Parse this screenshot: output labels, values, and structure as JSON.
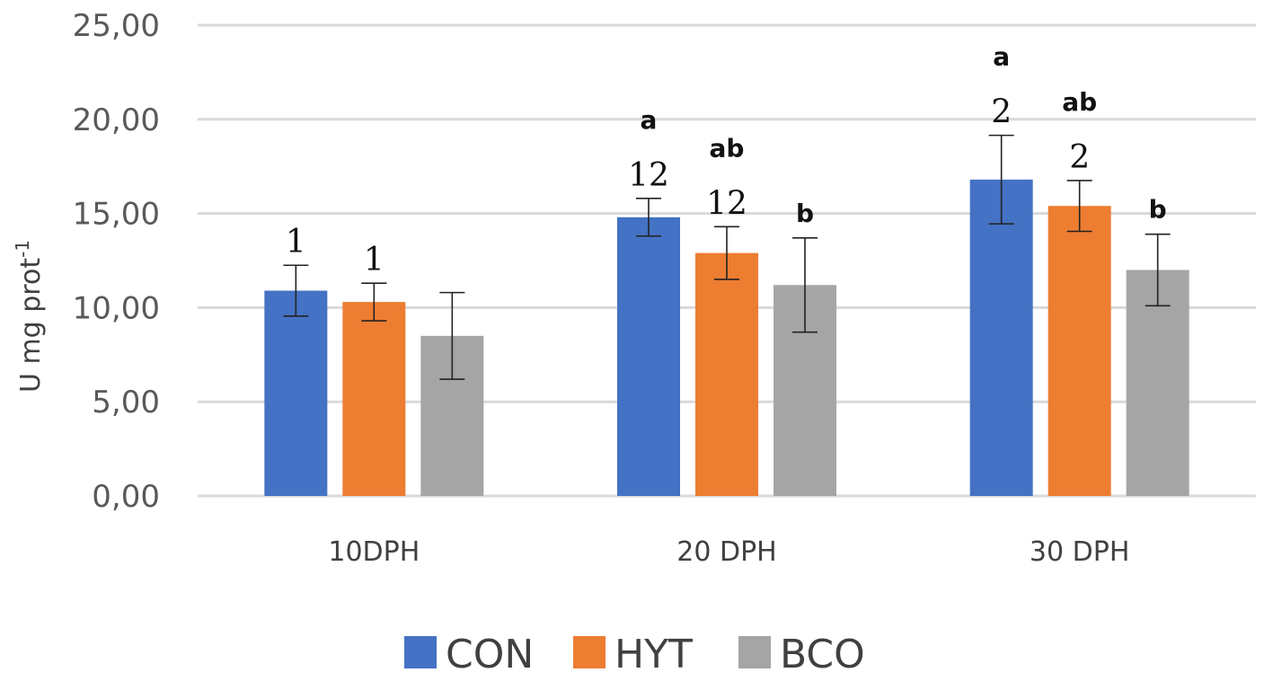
{
  "chart_data": {
    "type": "bar",
    "categories": [
      "10DPH",
      "20 DPH",
      "30 DPH"
    ],
    "series": [
      {
        "name": "CON",
        "color": "#4472C4",
        "values": [
          10.9,
          14.8,
          16.8
        ],
        "errors": [
          1.35,
          1.0,
          2.35
        ],
        "num_labels": [
          "1",
          "12",
          "2"
        ],
        "letter_labels": [
          "",
          "a",
          "a"
        ]
      },
      {
        "name": "HYT",
        "color": "#ED7D31",
        "values": [
          10.3,
          12.9,
          15.4
        ],
        "errors": [
          1.0,
          1.4,
          1.35
        ],
        "num_labels": [
          "1",
          "12",
          "2"
        ],
        "letter_labels": [
          "",
          "ab",
          "ab"
        ]
      },
      {
        "name": "BCO",
        "color": "#A5A5A5",
        "values": [
          8.5,
          11.2,
          12.0
        ],
        "errors": [
          2.3,
          2.5,
          1.9
        ],
        "num_labels": [
          "",
          "",
          ""
        ],
        "letter_labels": [
          "",
          "b",
          "b"
        ]
      }
    ],
    "y_ticks": [
      "0,00",
      "5,00",
      "10,00",
      "15,00",
      "20,00",
      "25,00"
    ],
    "ylim": [
      0,
      25
    ],
    "ylabel": "U mg prot",
    "ylabel_superscript": "-1",
    "xlabel": "",
    "title": "",
    "grid": true,
    "legend_position": "bottom"
  }
}
